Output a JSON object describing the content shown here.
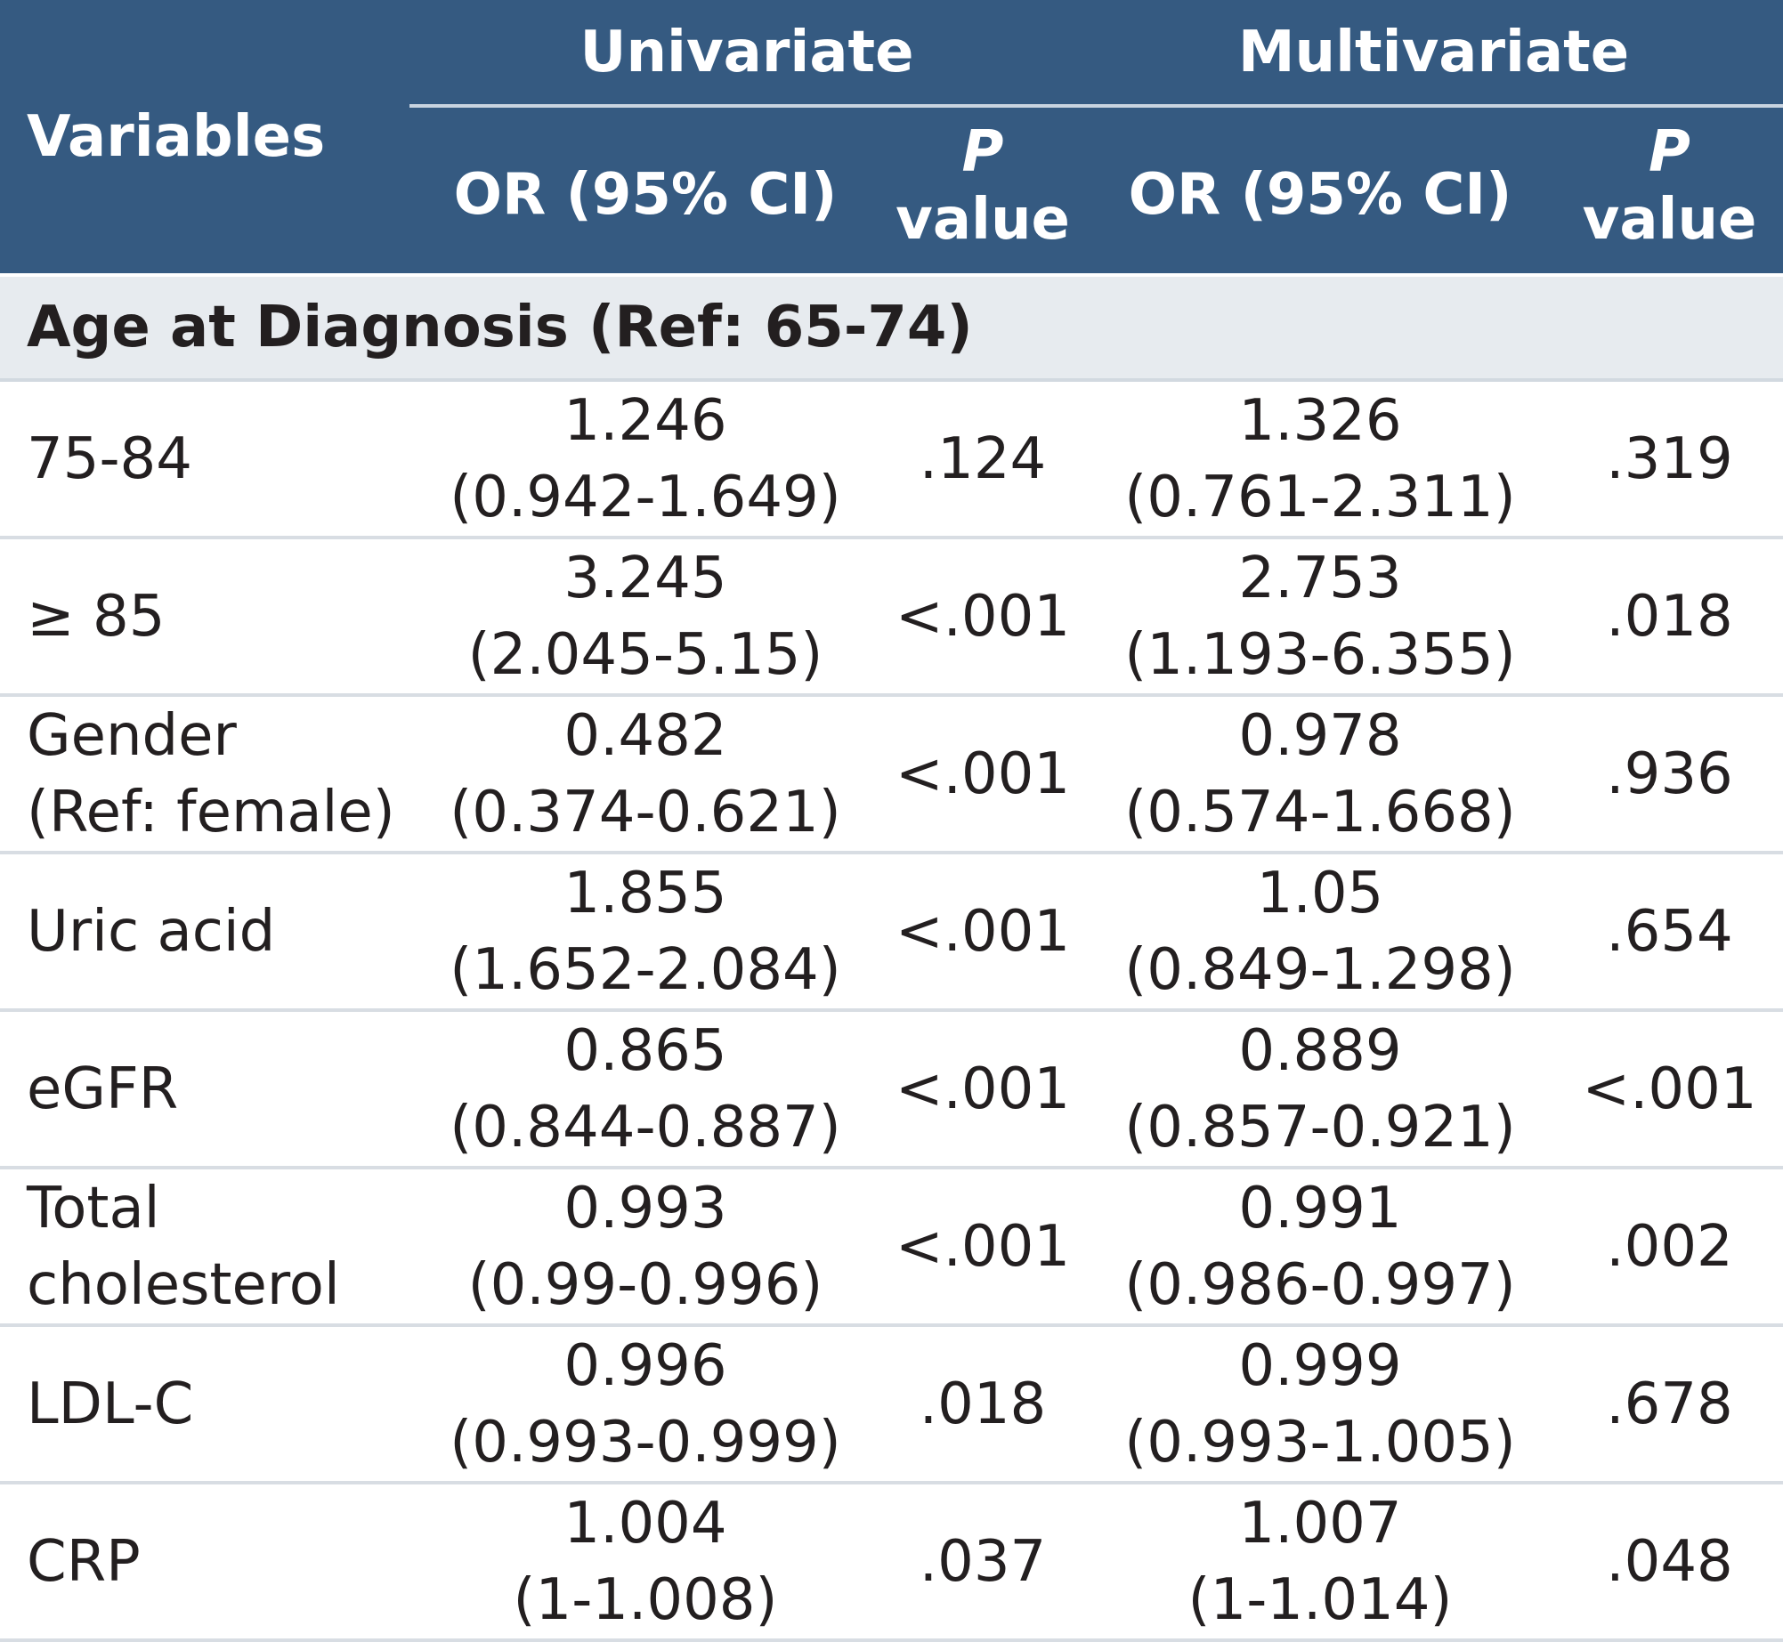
{
  "header": {
    "variables": "Variables",
    "univariate": "Univariate",
    "multivariate": "Multivariate",
    "or_label": "OR (95% CI)",
    "p_letter": "P",
    "p_word": "value"
  },
  "group": {
    "label": "Age at Diagnosis (Ref: 65-74)"
  },
  "rows": [
    {
      "var_line1": "75-84",
      "var_line2": "",
      "u_or": "1.246",
      "u_ci": "(0.942-1.649)",
      "u_p": ".124",
      "m_or": "1.326",
      "m_ci": "(0.761-2.311)",
      "m_p": ".319"
    },
    {
      "var_line1": "≥ 85",
      "var_line2": "",
      "u_or": "3.245",
      "u_ci": "(2.045-5.15)",
      "u_p": "<.001",
      "m_or": "2.753",
      "m_ci": "(1.193-6.355)",
      "m_p": ".018"
    },
    {
      "var_line1": "Gender",
      "var_line2": "(Ref: female)",
      "u_or": "0.482",
      "u_ci": "(0.374-0.621)",
      "u_p": "<.001",
      "m_or": "0.978",
      "m_ci": "(0.574-1.668)",
      "m_p": ".936"
    },
    {
      "var_line1": "Uric acid",
      "var_line2": "",
      "u_or": "1.855",
      "u_ci": "(1.652-2.084)",
      "u_p": "<.001",
      "m_or": "1.05",
      "m_ci": "(0.849-1.298)",
      "m_p": ".654"
    },
    {
      "var_line1": "eGFR",
      "var_line2": "",
      "u_or": "0.865",
      "u_ci": "(0.844-0.887)",
      "u_p": "<.001",
      "m_or": "0.889",
      "m_ci": "(0.857-0.921)",
      "m_p": "<.001"
    },
    {
      "var_line1": "Total",
      "var_line2": "cholesterol",
      "u_or": "0.993",
      "u_ci": "(0.99-0.996)",
      "u_p": "<.001",
      "m_or": "0.991",
      "m_ci": "(0.986-0.997)",
      "m_p": ".002"
    },
    {
      "var_line1": "LDL-C",
      "var_line2": "",
      "u_or": "0.996",
      "u_ci": "(0.993-0.999)",
      "u_p": ".018",
      "m_or": "0.999",
      "m_ci": "(0.993-1.005)",
      "m_p": ".678"
    },
    {
      "var_line1": "CRP",
      "var_line2": "",
      "u_or": "1.004",
      "u_ci": "(1-1.008)",
      "u_p": ".037",
      "m_or": "1.007",
      "m_ci": "(1-1.014)",
      "m_p": ".048"
    }
  ],
  "colors": {
    "header_bg": "#355a81",
    "header_text": "#ffffff",
    "group_bg": "#e7ebef",
    "row_divider": "#d8dde3"
  }
}
